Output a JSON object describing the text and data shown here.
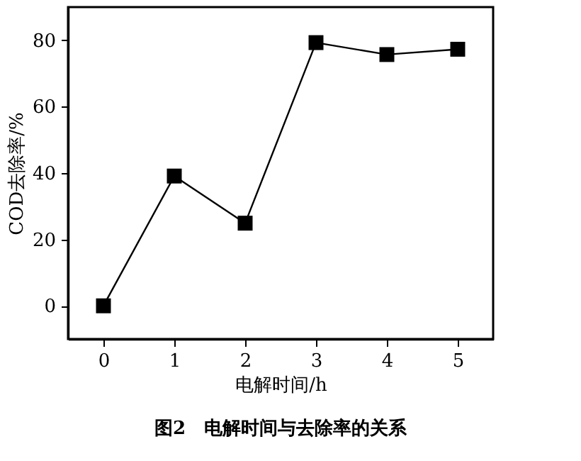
{
  "chart_data": {
    "type": "line",
    "title": "图2　电解时间与去除率的关系",
    "xlabel": "电解时间/h",
    "ylabel": "COD去除率/%",
    "x": [
      0,
      1,
      2,
      3,
      4,
      5
    ],
    "series": [
      {
        "color": "#000000",
        "values": [
          0,
          39.1,
          24.9,
          79.3,
          75.7,
          77.3
        ]
      }
    ],
    "xlim": [
      -0.5,
      5.5
    ],
    "xticks": [
      0,
      1,
      2,
      3,
      4,
      5
    ],
    "ylim": [
      -10,
      90
    ],
    "yticks": [
      0,
      20,
      40,
      60,
      80
    ],
    "marker": "square",
    "line_style": "solid",
    "grid": false
  }
}
